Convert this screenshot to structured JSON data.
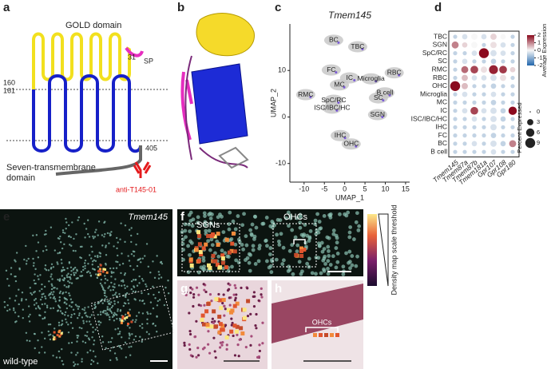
{
  "panels": {
    "a": {
      "label": "a",
      "gold": "GOLD domain",
      "sp_num": "31",
      "sp": "SP",
      "n160": "160",
      "n161": "161",
      "n405": "405",
      "tm_line1": "Seven-transmembrane",
      "tm_line2": "domain",
      "antibody": "anti-T145-01"
    },
    "b": {
      "label": "b"
    },
    "c": {
      "label": "c"
    },
    "d": {
      "label": "d"
    },
    "e": {
      "label": "e",
      "gene": "Tmem145",
      "genotype": "wild-type"
    },
    "f": {
      "label": "f",
      "sgns": "SGNs",
      "ohcs": "OHCs",
      "scale": "Density map scale threshold"
    },
    "g": {
      "label": "g"
    },
    "h": {
      "label": "h",
      "ohcs": "OHCs"
    }
  },
  "chart_data": [
    {
      "type": "scatter",
      "title": "Tmem145",
      "xlabel": "UMAP_1",
      "ylabel": "UMAP_2",
      "xlim": [
        -13.5,
        16
      ],
      "ylim": [
        -14,
        20
      ],
      "xticks": [
        -10,
        -5,
        0,
        5,
        10,
        15
      ],
      "yticks": [
        10,
        0,
        -10
      ],
      "clusters": [
        {
          "label": "BC",
          "x": -2.7,
          "y": 16.5
        },
        {
          "label": "TBC",
          "x": 3.2,
          "y": 15.1
        },
        {
          "label": "FC",
          "x": -3.3,
          "y": 10.1
        },
        {
          "label": "IC",
          "x": 1.2,
          "y": 8.4
        },
        {
          "label": "Microglia",
          "x": 6.5,
          "y": 8.2
        },
        {
          "label": "RBC",
          "x": 12.2,
          "y": 9.5
        },
        {
          "label": "MC",
          "x": -1.3,
          "y": 6.9
        },
        {
          "label": "B cell",
          "x": 9.9,
          "y": 5.2
        },
        {
          "label": "SC",
          "x": 8.3,
          "y": 4.1
        },
        {
          "label": "RMC",
          "x": -9.6,
          "y": 4.8
        },
        {
          "label": "SpC/RC",
          "x": -2.7,
          "y": 3.6
        },
        {
          "label": "ISC/IBC/HC",
          "x": -3.1,
          "y": 1.9
        },
        {
          "label": "SGN",
          "x": 8.1,
          "y": 0.5
        },
        {
          "label": "IHC",
          "x": -1.1,
          "y": -4.0
        },
        {
          "label": "OHC",
          "x": 1.6,
          "y": -5.8
        }
      ]
    },
    {
      "type": "dotplot",
      "genes": [
        "Tmem145",
        "Tmem87a",
        "Tmem87b",
        "Tmem181a",
        "Gpr107",
        "Gpr108",
        "Gpr180"
      ],
      "cell_types": [
        "TBC",
        "SGN",
        "SpC/RC",
        "SC",
        "RMC",
        "RBC",
        "OHC",
        "Microglia",
        "MC",
        "IC",
        "ISC/IBC/HC",
        "IHC",
        "FC",
        "BC",
        "B cell"
      ],
      "avg_expression": [
        [
          -0.5,
          -0.3,
          0,
          -0.3,
          0.3,
          0,
          -0.5
        ],
        [
          1.0,
          0.3,
          0,
          -0.5,
          0.2,
          -0.3,
          -0.5
        ],
        [
          -0.5,
          -0.5,
          -0.3,
          2.0,
          -0.3,
          -0.3,
          -0.5
        ],
        [
          -0.5,
          -0.3,
          -0.5,
          -0.5,
          -0.5,
          -0.5,
          -0.5
        ],
        [
          -0.5,
          1.2,
          1.5,
          0.2,
          1.8,
          1.6,
          0.3
        ],
        [
          -0.5,
          0.5,
          -0.3,
          -0.3,
          -0.3,
          0.2,
          -0.5
        ],
        [
          2.2,
          0.5,
          -0.5,
          -0.5,
          -0.5,
          -0.5,
          -0.5
        ],
        [
          -0.5,
          -0.3,
          -0.5,
          -0.5,
          -0.3,
          -0.5,
          -0.5
        ],
        [
          -0.5,
          -0.5,
          -0.5,
          -0.5,
          -0.5,
          -0.5,
          -0.5
        ],
        [
          -0.5,
          -0.3,
          1.5,
          -0.3,
          -0.3,
          -0.5,
          2.0
        ],
        [
          -0.5,
          -0.5,
          -0.3,
          -0.5,
          -0.3,
          -0.5,
          -0.5
        ],
        [
          -0.5,
          -0.5,
          -0.5,
          -0.5,
          -0.3,
          -0.5,
          -0.5
        ],
        [
          -0.5,
          -0.5,
          -0.5,
          -0.5,
          -0.5,
          -0.5,
          -0.5
        ],
        [
          -0.5,
          -0.5,
          -0.3,
          -0.5,
          -0.3,
          -0.5,
          1.0
        ],
        [
          -0.5,
          -0.5,
          -0.5,
          -0.5,
          -0.3,
          -0.5,
          -0.5
        ]
      ],
      "pct_expressed": [
        [
          1,
          2,
          3,
          2,
          3,
          2,
          1
        ],
        [
          4,
          2,
          3,
          1,
          3,
          2,
          1
        ],
        [
          1,
          1,
          2,
          9,
          3,
          2,
          1
        ],
        [
          1,
          2,
          1,
          1,
          2,
          1,
          1
        ],
        [
          1,
          4,
          5,
          3,
          7,
          5,
          2
        ],
        [
          1,
          3,
          2,
          2,
          3,
          3,
          1
        ],
        [
          9,
          3,
          1,
          1,
          2,
          1,
          1
        ],
        [
          1,
          2,
          1,
          1,
          2,
          1,
          1
        ],
        [
          1,
          1,
          1,
          1,
          2,
          1,
          1
        ],
        [
          1,
          2,
          5,
          2,
          3,
          2,
          6
        ],
        [
          1,
          1,
          2,
          1,
          3,
          2,
          1
        ],
        [
          1,
          1,
          1,
          1,
          3,
          1,
          1
        ],
        [
          1,
          1,
          1,
          1,
          2,
          1,
          1
        ],
        [
          1,
          1,
          2,
          1,
          3,
          2,
          4
        ],
        [
          1,
          1,
          1,
          1,
          2,
          1,
          1
        ]
      ],
      "color_title": "Average Expression",
      "color_lim": [
        -2,
        2
      ],
      "color_ticks": [
        2,
        1,
        0,
        -1,
        -2
      ],
      "size_title": "Percent Expressed",
      "size_ticks": [
        0,
        3,
        6,
        9
      ]
    }
  ]
}
